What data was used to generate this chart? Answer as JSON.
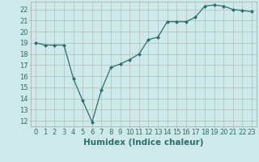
{
  "x": [
    0,
    1,
    2,
    3,
    4,
    5,
    6,
    7,
    8,
    9,
    10,
    11,
    12,
    13,
    14,
    15,
    16,
    17,
    18,
    19,
    20,
    21,
    22,
    23
  ],
  "y": [
    19.0,
    18.8,
    18.8,
    18.8,
    15.8,
    13.8,
    11.9,
    14.8,
    16.8,
    17.1,
    17.5,
    18.0,
    19.3,
    19.5,
    20.9,
    20.9,
    20.9,
    21.3,
    22.3,
    22.4,
    22.3,
    22.0,
    21.9,
    21.8
  ],
  "line_color": "#2d6e6e",
  "marker": "D",
  "marker_size": 2.0,
  "bg_color": "#cde9e9",
  "grid_color": "#b0b0b0",
  "xlabel": "Humidex (Indice chaleur)",
  "xlim": [
    -0.5,
    23.5
  ],
  "ylim": [
    11.5,
    22.7
  ],
  "yticks": [
    12,
    13,
    14,
    15,
    16,
    17,
    18,
    19,
    20,
    21,
    22
  ],
  "xticks": [
    0,
    1,
    2,
    3,
    4,
    5,
    6,
    7,
    8,
    9,
    10,
    11,
    12,
    13,
    14,
    15,
    16,
    17,
    18,
    19,
    20,
    21,
    22,
    23
  ],
  "tick_label_fontsize": 6.0,
  "xlabel_fontsize": 7.5
}
